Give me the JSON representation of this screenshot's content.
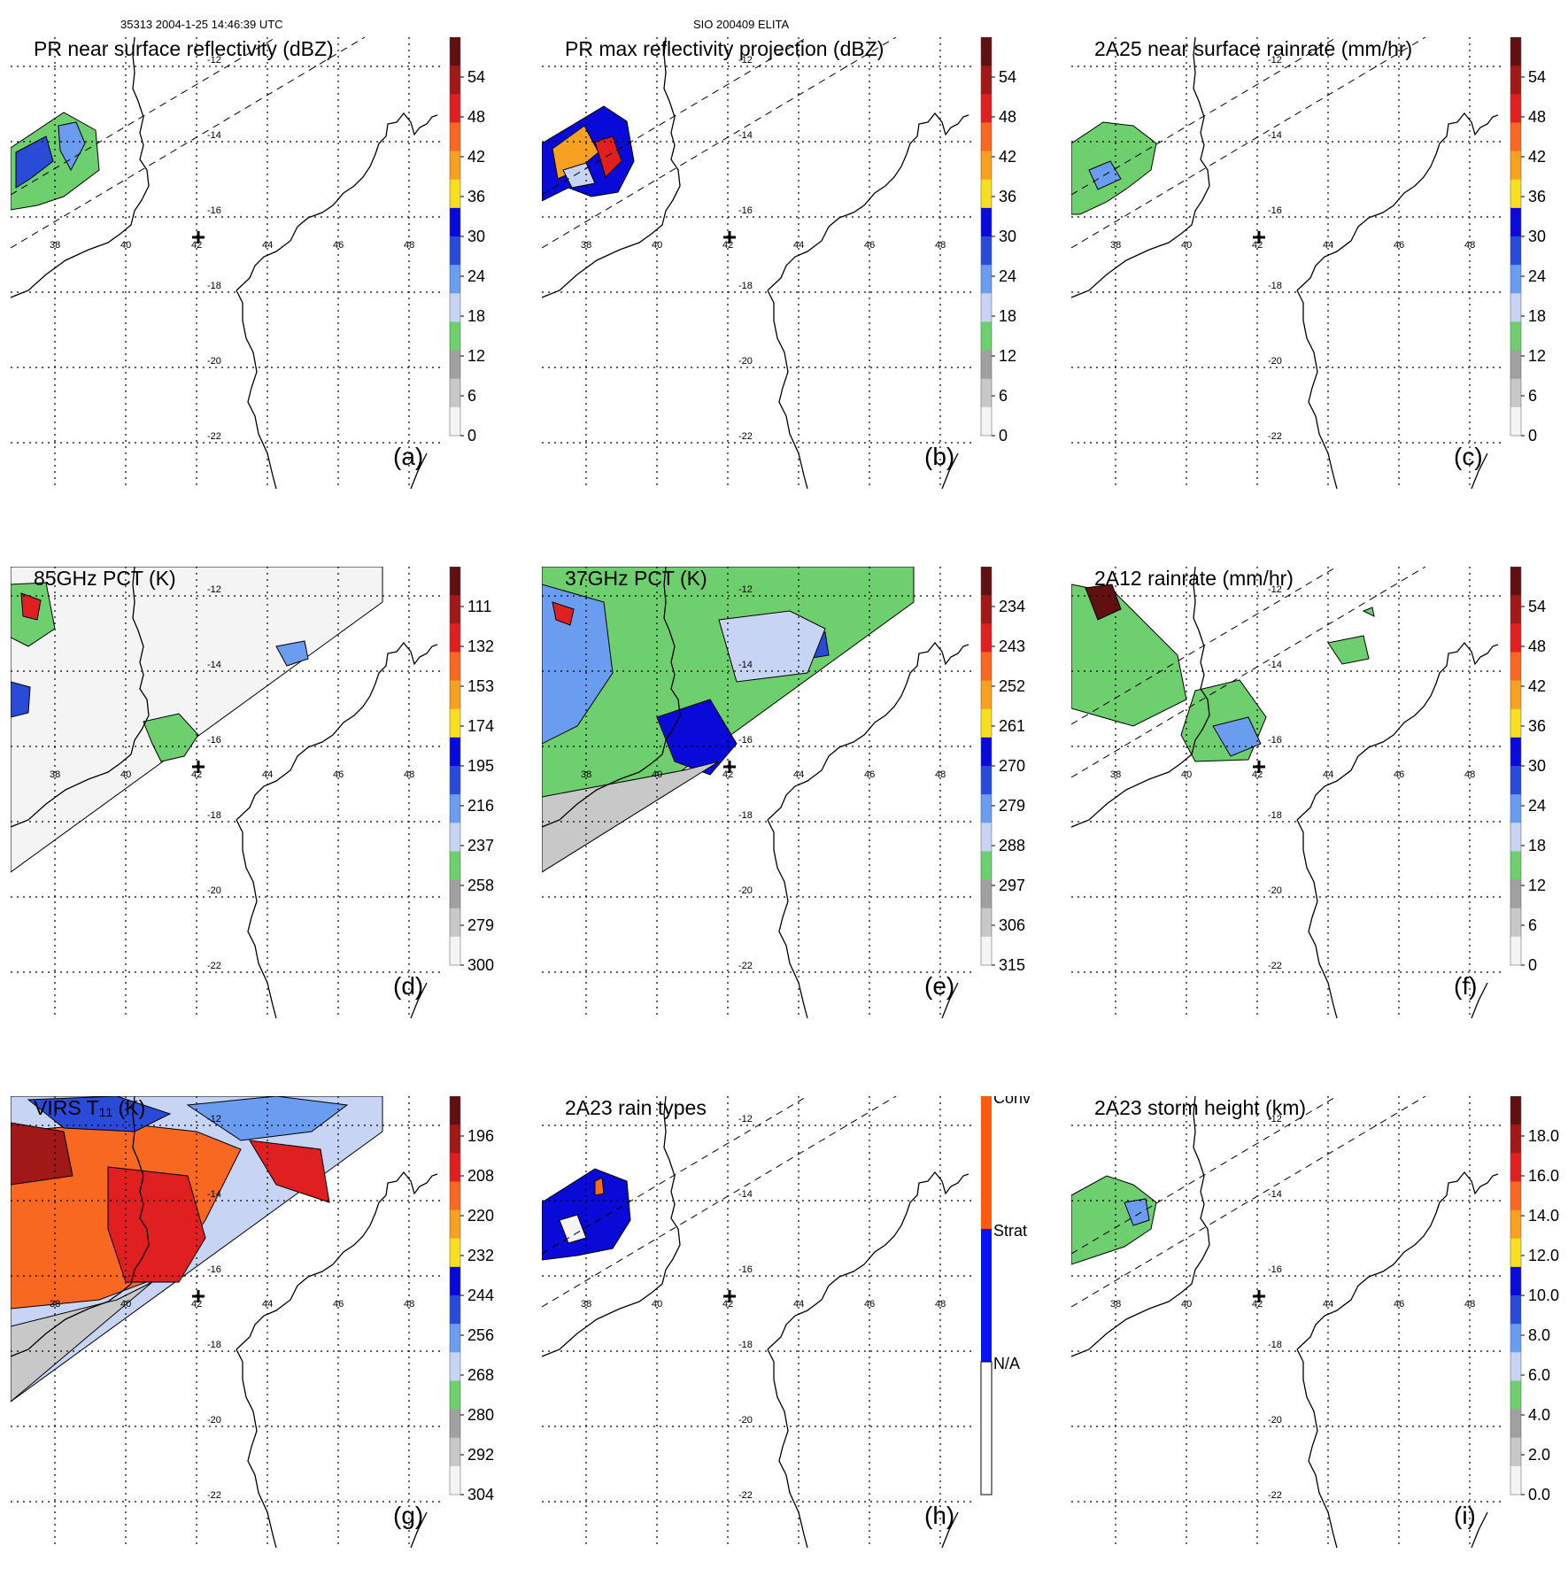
{
  "header": {
    "left": "35313 2004-1-25 14:46:39 UTC",
    "center": "SIO 200409 ELITA"
  },
  "lon_labels": [
    "38",
    "40",
    "42",
    "44",
    "46",
    "48"
  ],
  "lat_labels": [
    "-12",
    "-14",
    "-16",
    "-18",
    "-20",
    "-22"
  ],
  "panels": [
    {
      "title": "PR near surface reflectivity (dBZ)",
      "label": "(a)",
      "ticks": [
        "54",
        "48",
        "42",
        "36",
        "30",
        "24",
        "18",
        "12",
        "6",
        "0"
      ]
    },
    {
      "title": "PR max reflectivity projection (dBZ)",
      "label": "(b)",
      "ticks": [
        "54",
        "48",
        "42",
        "36",
        "30",
        "24",
        "18",
        "12",
        "6",
        "0"
      ]
    },
    {
      "title": "2A25 near surface rainrate (mm/hr)",
      "label": "(c)",
      "ticks": [
        "54",
        "48",
        "42",
        "36",
        "30",
        "24",
        "18",
        "12",
        "6",
        "0"
      ]
    },
    {
      "title": "85GHz PCT (K)",
      "label": "(d)",
      "ticks": [
        "111",
        "132",
        "153",
        "174",
        "195",
        "216",
        "237",
        "258",
        "279",
        "300"
      ]
    },
    {
      "title": "37GHz PCT (K)",
      "label": "(e)",
      "ticks": [
        "234",
        "243",
        "252",
        "261",
        "270",
        "279",
        "288",
        "297",
        "306",
        "315"
      ]
    },
    {
      "title": "2A12 rainrate (mm/hr)",
      "label": "(f)",
      "ticks": [
        "54",
        "48",
        "42",
        "36",
        "30",
        "24",
        "18",
        "12",
        "6",
        "0"
      ]
    },
    {
      "title": "VIRS T₁₁ (K)",
      "label": "(g)",
      "ticks": [
        "196",
        "208",
        "220",
        "232",
        "244",
        "256",
        "268",
        "280",
        "292",
        "304"
      ]
    },
    {
      "title": "2A23 rain types",
      "label": "(h)",
      "ticks": [
        "Conv",
        "Strat",
        "N/A"
      ]
    },
    {
      "title": "2A23 storm height (km)",
      "label": "(i)",
      "ticks": [
        "18.0",
        "16.0",
        "14.0",
        "12.0",
        "10.0",
        "8.0",
        "6.0",
        "4.0",
        "2.0",
        "0.0"
      ]
    }
  ],
  "colors": {
    "scale": [
      "#f4f4f4",
      "#c8c8c8",
      "#a0a0a0",
      "#6ecf6e",
      "#c8d4f4",
      "#6a9cf0",
      "#2a4ad8",
      "#0a0ad8",
      "#f8e020",
      "#f8a020",
      "#f86820",
      "#e02020",
      "#a01818",
      "#601010"
    ],
    "conv": "#ff5a10",
    "strat": "#0a14f0"
  }
}
